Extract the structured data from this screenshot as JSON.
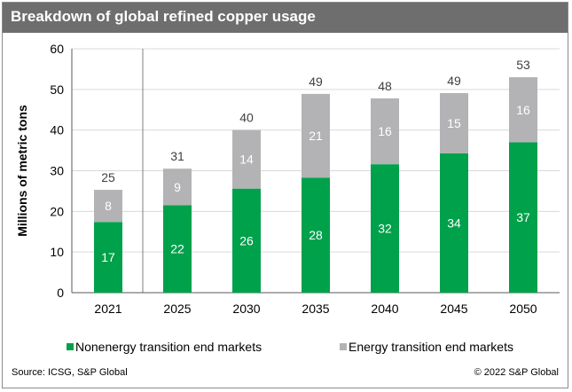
{
  "chart_data": {
    "type": "bar",
    "stacked": true,
    "title": "Breakdown of global refined copper usage",
    "ylabel": "Millions of metric tons",
    "ylim": [
      0,
      60
    ],
    "yticks": [
      0,
      10,
      20,
      30,
      40,
      50,
      60
    ],
    "categories": [
      "2021",
      "2025",
      "2030",
      "2035",
      "2040",
      "2045",
      "2050"
    ],
    "series": [
      {
        "name": "Nonenergy transition end markets",
        "color": "#00a14b",
        "values": [
          17.4,
          21.5,
          25.6,
          28.3,
          31.6,
          34.3,
          37.0
        ],
        "labels": [
          "17",
          "22",
          "26",
          "28",
          "32",
          "34",
          "37"
        ]
      },
      {
        "name": "Energy transition end markets",
        "color": "#b3b3b5",
        "values": [
          7.9,
          9.0,
          14.4,
          20.6,
          16.2,
          14.8,
          16.0
        ],
        "labels": [
          "8",
          "9",
          "14",
          "21",
          "16",
          "15",
          "16"
        ]
      }
    ],
    "totals": [
      "25",
      "31",
      "40",
      "49",
      "48",
      "49",
      "53"
    ],
    "legend_position": "bottom",
    "grid": true
  },
  "footer": {
    "source": "Source: ICSG, S&P Global",
    "copyright": "© 2022 S&P Global"
  },
  "colors": {
    "title_bar": "#6e6e6e",
    "grid": "#d9d9d9"
  }
}
